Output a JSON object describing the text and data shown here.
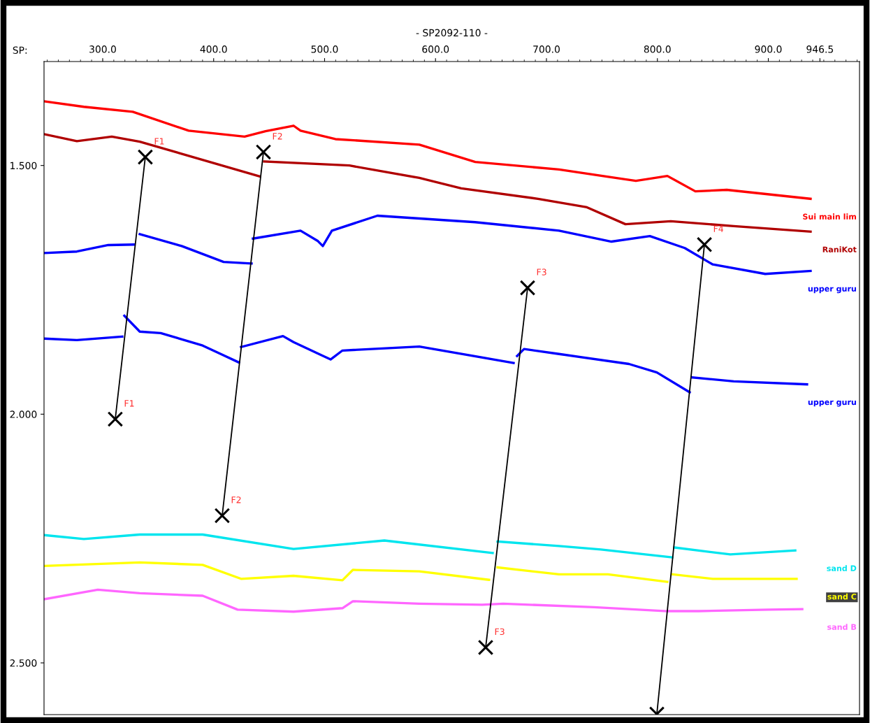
{
  "chart_data": {
    "type": "line",
    "title": "- SP2092-110 -",
    "xlabel": "SP:",
    "xlim": [
      247.1,
      982.2
    ],
    "xticks": [
      {
        "value": 300,
        "label": "300.0"
      },
      {
        "value": 400,
        "label": "400.0"
      },
      {
        "value": 500,
        "label": "500.0"
      },
      {
        "value": 600,
        "label": "600.0"
      },
      {
        "value": 700,
        "label": "700.0"
      },
      {
        "value": 800,
        "label": "800.0"
      },
      {
        "value": 900,
        "label": "900.0"
      },
      {
        "value": 946.5,
        "label": "946.5"
      }
    ],
    "ylim": [
      2.604,
      1.291
    ],
    "yticks": [
      {
        "value": 1.5,
        "label": "1.500"
      },
      {
        "value": 2.0,
        "label": "2.000"
      },
      {
        "value": 2.5,
        "label": "2.500"
      }
    ],
    "grid": false,
    "legend": false,
    "line_style": "solid",
    "marker": "none",
    "series": [
      {
        "name": "Sui main lim",
        "color": "#ff0000",
        "x": [
          247.1,
          283.0,
          327.1,
          377.5,
          427.9,
          446.8,
          472.0,
          478.3,
          509.8,
          585.4,
          635.8,
          711.3,
          780.6,
          809.0,
          834.2,
          862.5,
          938.1
        ],
        "values": [
          1.371,
          1.382,
          1.392,
          1.43,
          1.442,
          1.431,
          1.42,
          1.43,
          1.447,
          1.458,
          1.493,
          1.508,
          1.531,
          1.521,
          1.552,
          1.549,
          1.567
        ]
      },
      {
        "name": "RaniKot",
        "color": "#b00000",
        "x": [
          247.1,
          276.7,
          308.2,
          333.4,
          441.7,
          443.6,
          445.5,
          522.4,
          585.4,
          623.2,
          692.4,
          736.5,
          771.2,
          812.1,
          868.8,
          938.1
        ],
        "values": [
          1.437,
          1.451,
          1.442,
          1.452,
          1.522,
          null,
          1.492,
          1.5,
          1.525,
          1.546,
          1.567,
          1.584,
          1.618,
          1.612,
          1.622,
          1.633
        ]
      },
      {
        "name": "upper guru",
        "color": "#0000ff",
        "x": [
          247.1,
          276.7,
          305.0,
          328.3,
          330.9,
          333.4,
          371.2,
          409.0,
          434.2,
          434.8,
          435.4,
          478.3,
          494.0,
          498.4,
          506.6,
          547.6,
          635.8,
          711.3,
          758.6,
          793.2,
          824.7,
          849.9,
          897.2,
          938.1
        ],
        "values": [
          1.676,
          1.673,
          1.66,
          1.659,
          null,
          1.638,
          1.662,
          1.694,
          1.697,
          null,
          1.647,
          1.631,
          1.652,
          1.662,
          1.631,
          1.601,
          1.614,
          1.631,
          1.653,
          1.642,
          1.666,
          1.699,
          1.718,
          1.712
        ]
      },
      {
        "name": "upper guru",
        "color": "#0000ff",
        "x": [
          247.1,
          276.7,
          317.6,
          318.5,
          319.5,
          333.4,
          352.3,
          390.1,
          422.8,
          423.7,
          424.7,
          462.5,
          472.0,
          505.4,
          516.1,
          585.4,
          670.4,
          672.0,
          673.5,
          679.8,
          711.3,
          774.3,
          799.5,
          829.1,
          830.0,
          831.0,
          868.8,
          934.9
        ],
        "values": [
          1.848,
          1.851,
          1.844,
          null,
          1.802,
          1.834,
          1.837,
          1.862,
          1.896,
          null,
          1.865,
          1.843,
          1.855,
          1.89,
          1.872,
          1.864,
          1.897,
          null,
          1.883,
          1.869,
          1.879,
          1.899,
          1.916,
          1.956,
          null,
          1.926,
          1.934,
          1.94
        ]
      },
      {
        "name": "sand D",
        "color": "#00e5ee",
        "x": [
          247.1,
          283.0,
          333.4,
          390.1,
          472.0,
          553.9,
          651.5,
          653.7,
          655.9,
          711.3,
          749.1,
          813.4,
          814.3,
          815.3,
          865.7,
          924.3
        ],
        "values": [
          2.243,
          2.251,
          2.242,
          2.242,
          2.271,
          2.254,
          2.279,
          null,
          2.256,
          2.265,
          2.272,
          2.288,
          null,
          2.268,
          2.282,
          2.274
        ]
      },
      {
        "name": "sand C",
        "color": "#ffff00",
        "x": [
          247.1,
          333.4,
          390.1,
          424.7,
          472.0,
          516.1,
          525.5,
          585.4,
          648.3,
          652.1,
          655.9,
          711.3,
          755.4,
          808.9,
          811.1,
          813.4,
          849.9,
          925.5
        ],
        "values": [
          2.305,
          2.298,
          2.303,
          2.331,
          2.325,
          2.334,
          2.313,
          2.316,
          2.333,
          null,
          2.308,
          2.322,
          2.322,
          2.337,
          null,
          2.322,
          2.331,
          2.331
        ]
      },
      {
        "name": "sand B",
        "color": "#ff66ff",
        "x": [
          247.1,
          295.6,
          333.4,
          390.1,
          421.6,
          472.0,
          516.1,
          525.5,
          585.4,
          642.1,
          661.0,
          742.8,
          808.9,
          837.3,
          900.3,
          930.6
        ],
        "values": [
          2.372,
          2.353,
          2.36,
          2.365,
          2.393,
          2.397,
          2.39,
          2.376,
          2.381,
          2.383,
          2.381,
          2.388,
          2.396,
          2.396,
          2.393,
          2.392
        ]
      },
      {
        "color": "#000000",
        "marker": "cross",
        "x": [
          338.4,
          311.3
        ],
        "values": [
          1.483,
          2.01
        ]
      },
      {
        "color": "#000000",
        "marker": "cross",
        "x": [
          444.9,
          407.7
        ],
        "values": [
          1.473,
          2.204
        ]
      },
      {
        "color": "#000000",
        "marker": "cross",
        "x": [
          683.0,
          645.2
        ],
        "values": [
          1.746,
          2.469
        ]
      },
      {
        "color": "#000000",
        "marker": "cross",
        "x": [
          842.4,
          799.5
        ],
        "values": [
          1.659,
          2.603
        ]
      }
    ],
    "annotations": [
      {
        "text": "F1",
        "x": 338.4,
        "y": 1.483
      },
      {
        "text": "F1",
        "x": 311.3,
        "y": 2.01
      },
      {
        "text": "F2",
        "x": 444.9,
        "y": 1.473
      },
      {
        "text": "F2",
        "x": 407.7,
        "y": 2.204
      },
      {
        "text": "F3",
        "x": 683.0,
        "y": 1.746
      },
      {
        "text": "F3",
        "x": 645.2,
        "y": 2.469
      },
      {
        "text": "F4",
        "x": 842.4,
        "y": 1.659
      }
    ]
  }
}
